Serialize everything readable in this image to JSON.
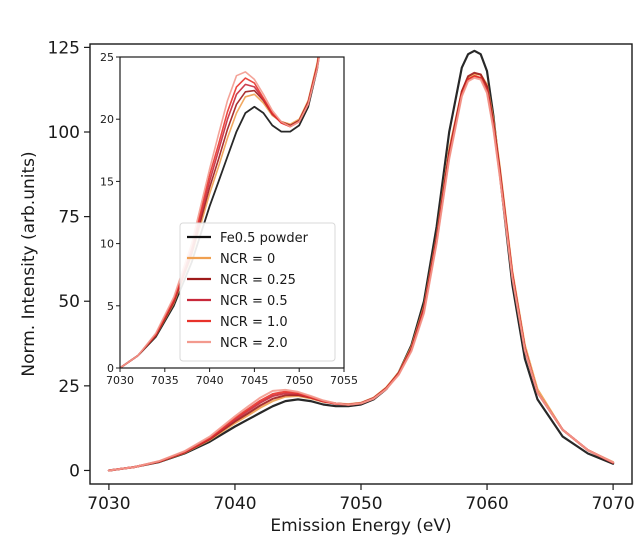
{
  "chart_data": {
    "type": "line",
    "xlabel": "Emission Energy (eV)",
    "ylabel": "Norm. Intensity (arb.units)",
    "xlim": [
      7028.5,
      7071.5
    ],
    "ylim": [
      -4,
      126
    ],
    "xticks": [
      7030,
      7040,
      7050,
      7060,
      7070
    ],
    "yticks": [
      0,
      25,
      50,
      75,
      100,
      125
    ],
    "grid": false,
    "legend_position": "inside inset, lower-right",
    "series": [
      {
        "name": "Fe0.5 powder",
        "color": "#111111",
        "x": [
          7030,
          7032,
          7034,
          7036,
          7038,
          7040,
          7041,
          7042,
          7043,
          7044,
          7045,
          7046,
          7047,
          7048,
          7049,
          7050,
          7051,
          7052,
          7053,
          7054,
          7055,
          7056,
          7057,
          7058,
          7058.5,
          7059,
          7059.5,
          7060,
          7060.5,
          7061,
          7062,
          7063,
          7064,
          7066,
          7068,
          7070
        ],
        "y": [
          0,
          1,
          2.5,
          5,
          8.5,
          13,
          15,
          17,
          19,
          20.5,
          21,
          20.5,
          19.5,
          19,
          19,
          19.5,
          21,
          24,
          29,
          37,
          50,
          72,
          100,
          119,
          123,
          124,
          123,
          118,
          105,
          88,
          55,
          33,
          21,
          10,
          5,
          2
        ]
      },
      {
        "name": "NCR = 0",
        "color": "#f0a050",
        "x": [
          7030,
          7032,
          7034,
          7036,
          7038,
          7040,
          7041,
          7042,
          7043,
          7044,
          7045,
          7046,
          7047,
          7048,
          7049,
          7050,
          7051,
          7052,
          7053,
          7054,
          7055,
          7056,
          7057,
          7058,
          7058.5,
          7059,
          7059.5,
          7060,
          7060.5,
          7061,
          7062,
          7063,
          7064,
          7066,
          7068,
          7070
        ],
        "y": [
          0,
          1,
          2.6,
          5.2,
          9,
          14,
          16.2,
          18.5,
          20.5,
          21.8,
          22,
          21.3,
          20.3,
          19.8,
          19.6,
          20,
          21.5,
          24.5,
          29,
          36.5,
          48.5,
          69,
          95,
          112,
          116,
          117,
          117,
          114,
          104,
          90,
          59,
          37,
          24,
          12,
          6,
          2.5
        ]
      },
      {
        "name": "NCR = 0.25",
        "color": "#9e1a1a",
        "x": [
          7030,
          7032,
          7034,
          7036,
          7038,
          7040,
          7041,
          7042,
          7043,
          7044,
          7045,
          7046,
          7047,
          7048,
          7049,
          7050,
          7051,
          7052,
          7053,
          7054,
          7055,
          7056,
          7057,
          7058,
          7058.5,
          7059,
          7059.5,
          7060,
          7060.5,
          7061,
          7062,
          7063,
          7064,
          7066,
          7068,
          7070
        ],
        "y": [
          0,
          1,
          2.6,
          5.3,
          9.2,
          14.5,
          16.8,
          19.2,
          21.2,
          22.2,
          22.3,
          21.5,
          20.4,
          19.8,
          19.5,
          19.9,
          21.4,
          24.3,
          28.8,
          36,
          48,
          68.5,
          94,
          112,
          116.5,
          117.5,
          117,
          113.5,
          103,
          89,
          58,
          36,
          23,
          12,
          6,
          2.3
        ]
      },
      {
        "name": "NCR = 0.5",
        "color": "#c8283a",
        "x": [
          7030,
          7032,
          7034,
          7036,
          7038,
          7040,
          7041,
          7042,
          7043,
          7044,
          7045,
          7046,
          7047,
          7048,
          7049,
          7050,
          7051,
          7052,
          7053,
          7054,
          7055,
          7056,
          7057,
          7058,
          7058.5,
          7059,
          7059.5,
          7060,
          7060.5,
          7061,
          7062,
          7063,
          7064,
          7066,
          7068,
          7070
        ],
        "y": [
          0,
          1,
          2.7,
          5.4,
          9.4,
          15,
          17.5,
          20,
          22,
          22.8,
          22.6,
          21.6,
          20.4,
          19.7,
          19.4,
          19.8,
          21.3,
          24.2,
          28.6,
          35.8,
          47.5,
          68,
          93,
          111,
          115.5,
          116.5,
          116,
          112.5,
          102,
          88,
          58,
          36,
          23,
          12,
          6,
          2.3
        ]
      },
      {
        "name": "NCR = 1.0",
        "color": "#e8322a",
        "x": [
          7030,
          7032,
          7034,
          7036,
          7038,
          7040,
          7041,
          7042,
          7043,
          7044,
          7045,
          7046,
          7047,
          7048,
          7049,
          7050,
          7051,
          7052,
          7053,
          7054,
          7055,
          7056,
          7057,
          7058,
          7058.5,
          7059,
          7059.5,
          7060,
          7060.5,
          7061,
          7062,
          7063,
          7064,
          7066,
          7068,
          7070
        ],
        "y": [
          0,
          1,
          2.7,
          5.5,
          9.6,
          15.5,
          18,
          20.6,
          22.6,
          23.3,
          22.9,
          21.7,
          20.5,
          19.7,
          19.4,
          19.8,
          21.2,
          24.1,
          28.5,
          35.5,
          47,
          67.5,
          92.5,
          111,
          115.5,
          116.5,
          116,
          112,
          101.5,
          87.5,
          57.5,
          35.5,
          23,
          12,
          6,
          2.3
        ]
      },
      {
        "name": "NCR = 2.0",
        "color": "#f39a8e",
        "x": [
          7030,
          7032,
          7034,
          7036,
          7038,
          7040,
          7041,
          7042,
          7043,
          7044,
          7045,
          7046,
          7047,
          7048,
          7049,
          7050,
          7051,
          7052,
          7053,
          7054,
          7055,
          7056,
          7057,
          7058,
          7058.5,
          7059,
          7059.5,
          7060,
          7060.5,
          7061,
          7062,
          7063,
          7064,
          7066,
          7068,
          7070
        ],
        "y": [
          0,
          1,
          2.8,
          5.7,
          10,
          16,
          18.8,
          21.5,
          23.5,
          23.8,
          23.2,
          22,
          20.7,
          19.8,
          19.4,
          19.8,
          21.2,
          24,
          28.3,
          35.2,
          46.5,
          67,
          92,
          110.5,
          115,
          116,
          115.5,
          111.5,
          101,
          87,
          57,
          35.5,
          23,
          12,
          6,
          2.4
        ]
      }
    ],
    "inset": {
      "xlim": [
        7030,
        7055
      ],
      "ylim": [
        0,
        25
      ],
      "xticks": [
        7030,
        7035,
        7040,
        7045,
        7050,
        7055
      ],
      "yticks": [
        0,
        5,
        10,
        15,
        20,
        25
      ],
      "data_range_note_free": true
    },
    "legend": [
      "Fe0.5 powder",
      "NCR = 0",
      "NCR = 0.25",
      "NCR = 0.5",
      "NCR = 1.0",
      "NCR = 2.0"
    ]
  }
}
